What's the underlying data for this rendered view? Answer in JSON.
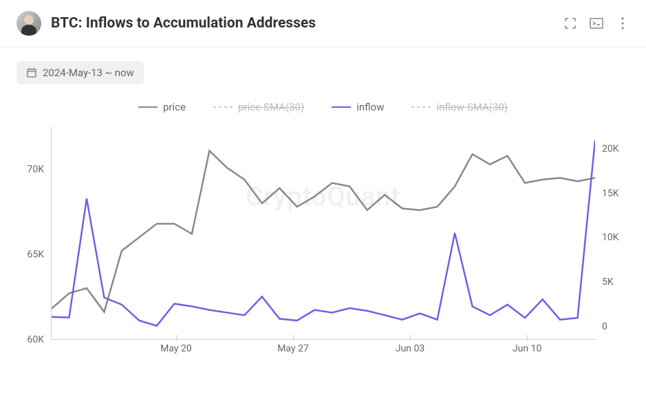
{
  "header": {
    "title": "BTC: Inflows to Accumulation Addresses"
  },
  "date_range": {
    "label": "2024-May-13 ~ now"
  },
  "chart": {
    "type": "line",
    "watermark": "CryptoQuant",
    "legend": [
      {
        "label": "price",
        "color": "#888888",
        "enabled": true,
        "dash": "none"
      },
      {
        "label": "price-SMA(30)",
        "color": "#cccccc",
        "enabled": false,
        "dash": "4,4"
      },
      {
        "label": "inflow",
        "color": "#6e5ee6",
        "enabled": true,
        "dash": "none"
      },
      {
        "label": "inflow-SMA(30)",
        "color": "#cccccc",
        "enabled": false,
        "dash": "4,4"
      }
    ],
    "y_left": {
      "ticks": [
        "70K",
        "65K",
        "60K"
      ],
      "min": 60000,
      "max": 72500,
      "label_fontsize": 14,
      "color": "#666666"
    },
    "y_right": {
      "ticks": [
        "20K",
        "15K",
        "10K",
        "5K",
        "0"
      ],
      "min": -1500,
      "max": 22500,
      "label_fontsize": 14,
      "color": "#666666"
    },
    "x_axis": {
      "ticks": [
        {
          "label": "May 20",
          "pos": 0.23
        },
        {
          "label": "May 27",
          "pos": 0.445
        },
        {
          "label": "Jun 03",
          "pos": 0.66
        },
        {
          "label": "Jun 10",
          "pos": 0.875
        }
      ],
      "label_fontsize": 14,
      "color": "#666666"
    },
    "series": {
      "price": {
        "color": "#888888",
        "line_width": 2.5,
        "values": [
          61800,
          62700,
          63000,
          61600,
          65200,
          66000,
          66800,
          66800,
          66200,
          71100,
          70100,
          69400,
          68000,
          68900,
          67800,
          68400,
          69200,
          69000,
          67600,
          68500,
          67700,
          67600,
          67800,
          69000,
          70900,
          70300,
          70800,
          69200,
          69400,
          69500,
          69300,
          69500
        ]
      },
      "inflow": {
        "color": "#6e5ee6",
        "line_width": 2.5,
        "values": [
          1000,
          950,
          14400,
          3200,
          2400,
          600,
          0,
          2500,
          2200,
          1800,
          1500,
          1200,
          3300,
          800,
          600,
          1800,
          1500,
          2000,
          1700,
          1200,
          700,
          1400,
          700,
          10500,
          2200,
          1200,
          2400,
          900,
          3000,
          700,
          900,
          21000
        ]
      }
    },
    "background_color": "#ffffff",
    "grid_color": "#eeeeee"
  }
}
